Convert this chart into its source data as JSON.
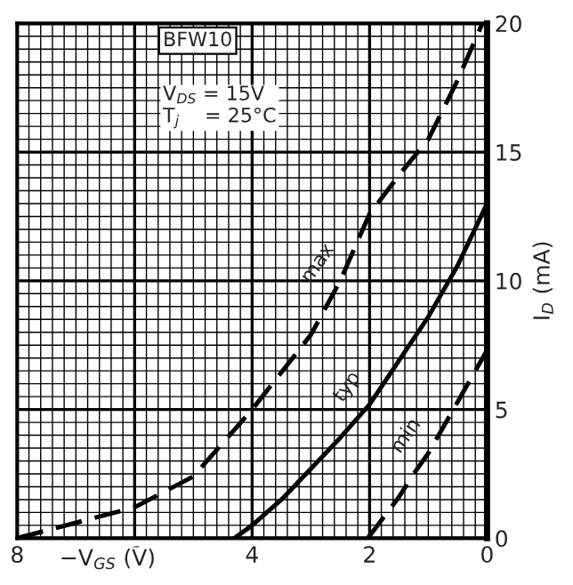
{
  "chart_data": {
    "type": "line",
    "title": "BFW10",
    "xlabel": "−V$_{GS}$ (V)",
    "ylabel": "I$_{D}$ (mA)",
    "annotations": [
      "V$_{DS}$ = 15V\nT$_{j}$    = 25°C"
    ],
    "series": [
      {
        "name": "max",
        "color": "#000000",
        "line_style": "dashed",
        "x": [
          8,
          7,
          6,
          5,
          4,
          3,
          2.5,
          2,
          1.5,
          1,
          0.5,
          0.08
        ],
        "values": [
          0,
          0.6,
          1.2,
          2.4,
          5.0,
          7.9,
          10,
          12.6,
          14.1,
          15.5,
          17.8,
          20
        ]
      },
      {
        "name": "typ",
        "color": "#000000",
        "line_style": "solid",
        "x": [
          4.3,
          4,
          3.5,
          3,
          2.5,
          2,
          1.5,
          1,
          0.5,
          0
        ],
        "values": [
          0,
          0.5,
          1.5,
          2.7,
          3.9,
          5.2,
          6.9,
          8.6,
          10.6,
          13
        ]
      },
      {
        "name": "min",
        "color": "#000000",
        "line_style": "dashed",
        "x": [
          2.03,
          1.5,
          1.25,
          1,
          0.5,
          0
        ],
        "values": [
          0,
          1.6,
          2.5,
          3.3,
          5.3,
          7.3
        ]
      }
    ],
    "xlim": [
      8,
      0
    ],
    "ylim": [
      0,
      20
    ],
    "xticks": [
      8,
      6,
      4,
      2,
      0
    ],
    "yticks": [
      0,
      5,
      10,
      15,
      20
    ],
    "grid": true
  }
}
